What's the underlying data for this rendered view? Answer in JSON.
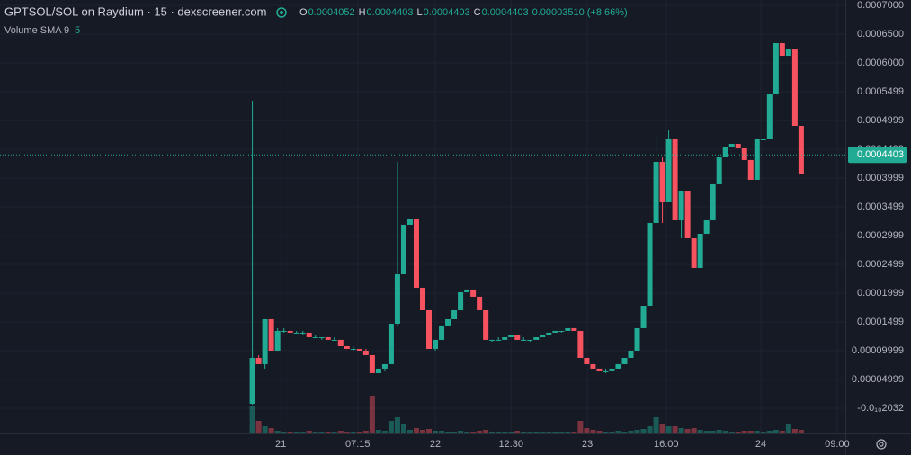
{
  "chart_data": {
    "type": "candlestick",
    "title": "GPTSOL/SOL on Raydium · 15 · dexscreener.com",
    "readout": [
      {
        "label": "O",
        "value": "0.0004052"
      },
      {
        "label": "H",
        "value": "0.0004403"
      },
      {
        "label": "L",
        "value": "0.0004403"
      },
      {
        "label": "C",
        "value": "0.0004403"
      }
    ],
    "change": "0.00003510 (+8.66%)",
    "volume_label": "Volume SMA 9",
    "volume_sma": 5,
    "up_color": "#22ab94",
    "down_color": "#f7525f",
    "xlim": [
      -40,
      94
    ],
    "xticks": [
      {
        "value": 4.5,
        "label": "21"
      },
      {
        "value": 16.7,
        "label": "07:15"
      },
      {
        "value": 29,
        "label": "22"
      },
      {
        "value": 41,
        "label": "12:30"
      },
      {
        "value": 53.1,
        "label": "23"
      },
      {
        "value": 65.6,
        "label": "16:00"
      },
      {
        "value": 80.6,
        "label": "24"
      },
      {
        "value": 92.7,
        "label": "09:00"
      }
    ],
    "ylim": [
      -4.38e-05,
      0.0007094
    ],
    "yticks": [
      {
        "value": 0.0007,
        "label": "0.0007000"
      },
      {
        "value": 0.00065,
        "label": "0.0006500"
      },
      {
        "value": 0.0006,
        "label": "0.0006000"
      },
      {
        "value": 0.0005499,
        "label": "0.0005499"
      },
      {
        "value": 0.0004999,
        "label": "0.0004999"
      },
      {
        "value": 0.0004499,
        "label": "0.0004499"
      },
      {
        "value": 0.0003999,
        "label": "0.0003999"
      },
      {
        "value": 0.0003499,
        "label": "0.0003499"
      },
      {
        "value": 0.0002999,
        "label": "0.0002999"
      },
      {
        "value": 0.0002499,
        "label": "0.0002499"
      },
      {
        "value": 0.0001999,
        "label": "0.0001999"
      },
      {
        "value": 0.0001499,
        "label": "0.0001499"
      },
      {
        "value": 9.999e-05,
        "label": "0.00009999"
      },
      {
        "value": 4.999e-05,
        "label": "0.00004999"
      },
      {
        "value": -2.032e-11,
        "label": "-0.0₁₀2032"
      }
    ],
    "last_price": {
      "value": 0.0004403,
      "label": "0.0004403"
    },
    "candles": [
      [
        7.8e-06,
        0.0005344,
        6.3e-06,
        8.75e-05
      ],
      [
        8.75e-05,
        9.22e-05,
        7.66e-05,
        7.66e-05
      ],
      [
        7.66e-05,
        0.0001547,
        6.88e-05,
        0.0001547
      ],
      [
        0.0001547,
        0.0001547,
        0.0001,
        0.0001
      ],
      [
        0.0001,
        0.0001391,
        0.0001,
        0.0001344
      ],
      [
        0.0001344,
        0.0001391,
        0.0001313,
        0.0001344
      ],
      [
        0.0001344,
        0.0001344,
        0.0001313,
        0.0001313
      ],
      [
        0.0001313,
        0.0001344,
        0.0001313,
        0.0001313
      ],
      [
        0.0001313,
        0.0001344,
        0.0001281,
        0.0001313
      ],
      [
        0.0001313,
        0.0001313,
        0.0001234,
        0.0001234
      ],
      [
        0.0001234,
        0.0001281,
        0.0001234,
        0.0001234
      ],
      [
        0.0001234,
        0.0001234,
        0.0001188,
        0.0001234
      ],
      [
        0.0001234,
        0.0001234,
        0.0001188,
        0.0001188
      ],
      [
        0.0001188,
        0.0001234,
        0.0001188,
        0.0001188
      ],
      [
        0.0001188,
        0.0001188,
        0.0001078,
        0.0001078
      ],
      [
        0.0001078,
        0.0001078,
        0.0001031,
        0.0001031
      ],
      [
        0.0001031,
        0.0001078,
        0.0001,
        0.0001031
      ],
      [
        0.0001031,
        0.0001031,
        0.0001,
        0.0001
      ],
      [
        0.0001,
        0.0001031,
        9.22e-05,
        9.22e-05
      ],
      [
        9.22e-05,
        9.22e-05,
        6.09e-05,
        6.09e-05
      ],
      [
        6.09e-05,
        6.88e-05,
        6.09e-05,
        6.88e-05
      ],
      [
        6.88e-05,
        7.66e-05,
        6.41e-05,
        7.66e-05
      ],
      [
        7.66e-05,
        0.0001469,
        7.66e-05,
        0.0001469
      ],
      [
        0.0001469,
        0.0004281,
        0.0001438,
        0.0002328
      ],
      [
        0.0002328,
        0.0003188,
        0.0002328,
        0.0003188
      ],
      [
        0.0003188,
        0.0003297,
        0.0003188,
        0.0003297
      ],
      [
        0.0003297,
        0.0003297,
        0.0002094,
        0.0002094
      ],
      [
        0.0002094,
        0.0002094,
        0.0001703,
        0.0001703
      ],
      [
        0.0001703,
        0.0001703,
        0.0001031,
        0.0001031
      ],
      [
        0.0001031,
        0.0001188,
        0.0001,
        0.0001188
      ],
      [
        0.0001188,
        0.0001438,
        0.0001188,
        0.0001438
      ],
      [
        0.0001438,
        0.0001547,
        0.0001438,
        0.0001547
      ],
      [
        0.0001547,
        0.0001703,
        0.0001547,
        0.0001703
      ],
      [
        0.0001703,
        0.0002016,
        0.0001703,
        0.0002016
      ],
      [
        0.0002016,
        0.0002063,
        0.0002016,
        0.0002063
      ],
      [
        0.0002063,
        0.0002063,
        0.0001938,
        0.0001938
      ],
      [
        0.0001938,
        0.0001938,
        0.0001703,
        0.0001703
      ],
      [
        0.0001703,
        0.0001703,
        0.0001188,
        0.0001188
      ],
      [
        0.0001188,
        0.0001188,
        0.0001156,
        0.0001188
      ],
      [
        0.0001188,
        0.0001234,
        0.0001188,
        0.0001188
      ],
      [
        0.0001188,
        0.0001234,
        0.0001188,
        0.0001234
      ],
      [
        0.0001234,
        0.0001281,
        0.0001234,
        0.0001281
      ],
      [
        0.0001281,
        0.0001281,
        0.0001188,
        0.0001188
      ],
      [
        0.0001188,
        0.0001234,
        0.0001188,
        0.0001188
      ],
      [
        0.0001188,
        0.0001188,
        0.0001156,
        0.0001188
      ],
      [
        0.0001188,
        0.0001234,
        0.0001188,
        0.0001234
      ],
      [
        0.0001234,
        0.0001281,
        0.0001234,
        0.0001281
      ],
      [
        0.0001281,
        0.0001313,
        0.0001281,
        0.0001313
      ],
      [
        0.0001313,
        0.0001344,
        0.0001313,
        0.0001344
      ],
      [
        0.0001344,
        0.0001344,
        0.0001313,
        0.0001344
      ],
      [
        0.0001344,
        0.0001391,
        0.0001344,
        0.0001391
      ],
      [
        0.0001391,
        0.0001391,
        0.0001344,
        0.0001344
      ],
      [
        0.0001344,
        0.0001344,
        8.75e-05,
        8.75e-05
      ],
      [
        8.75e-05,
        8.75e-05,
        7.66e-05,
        7.66e-05
      ],
      [
        7.66e-05,
        7.66e-05,
        6.88e-05,
        6.88e-05
      ],
      [
        6.88e-05,
        6.88e-05,
        6.41e-05,
        6.41e-05
      ],
      [
        6.41e-05,
        6.88e-05,
        6.09e-05,
        6.41e-05
      ],
      [
        6.41e-05,
        6.88e-05,
        6.41e-05,
        6.88e-05
      ],
      [
        6.88e-05,
        7.66e-05,
        6.88e-05,
        7.66e-05
      ],
      [
        7.66e-05,
        8.75e-05,
        7.66e-05,
        8.75e-05
      ],
      [
        8.75e-05,
        0.0001,
        8.75e-05,
        0.0001
      ],
      [
        0.0001,
        0.0001391,
        0.0001,
        0.0001391
      ],
      [
        0.0001391,
        0.0001781,
        0.0001391,
        0.0001781
      ],
      [
        0.0001781,
        0.0003219,
        0.0001781,
        0.0003219
      ],
      [
        0.0003219,
        0.000475,
        0.0003219,
        0.0004281
      ],
      [
        0.0004281,
        0.0004359,
        0.0003219,
        0.0003578
      ],
      [
        0.0003578,
        0.0004828,
        0.0003578,
        0.0004672
      ],
      [
        0.0004672,
        0.0004672,
        0.0003266,
        0.0003266
      ],
      [
        0.0003266,
        0.0003781,
        0.0002953,
        0.0003781
      ],
      [
        0.0003781,
        0.0003781,
        0.0002953,
        0.0002953
      ],
      [
        0.0002953,
        0.0002953,
        0.0002438,
        0.0002438
      ],
      [
        0.0002438,
        0.0003031,
        0.0002438,
        0.0003031
      ],
      [
        0.0003031,
        0.0003266,
        0.0003031,
        0.0003266
      ],
      [
        0.0003266,
        0.0003891,
        0.0003266,
        0.0003891
      ],
      [
        0.0003891,
        0.0004359,
        0.0003891,
        0.0004359
      ],
      [
        0.0004359,
        0.0004547,
        0.0004359,
        0.0004547
      ],
      [
        0.0004547,
        0.0004594,
        0.0004547,
        0.0004594
      ],
      [
        0.0004594,
        0.0004594,
        0.0004516,
        0.0004516
      ],
      [
        0.0004516,
        0.0004516,
        0.0004313,
        0.0004313
      ],
      [
        0.0004313,
        0.0004313,
        0.0003969,
        0.0003969
      ],
      [
        0.0003969,
        0.0004672,
        0.0003969,
        0.0004672
      ],
      [
        0.0004672,
        0.0004672,
        0.0004672,
        0.0004672
      ],
      [
        0.0004672,
        0.0005453,
        0.0004672,
        0.0005453
      ],
      [
        0.0005453,
        0.0006344,
        0.0005453,
        0.0006344
      ],
      [
        0.0006344,
        0.0006344,
        0.0006125,
        0.0006125
      ],
      [
        0.0006125,
        0.0006234,
        0.0006125,
        0.0006234
      ],
      [
        0.0006234,
        0.0006234,
        0.0004906,
        0.0004906
      ],
      [
        0.0004906,
        0.0004906,
        0.0004078,
        0.0004078
      ]
    ],
    "volume": [
      30,
      14,
      8,
      6,
      3,
      2,
      2,
      2,
      2,
      3,
      2,
      2,
      2,
      2,
      3,
      2,
      2,
      2,
      3,
      42,
      4,
      3,
      14,
      18,
      10,
      4,
      6,
      4,
      5,
      3,
      3,
      2,
      2,
      3,
      2,
      2,
      3,
      4,
      2,
      2,
      2,
      2,
      3,
      2,
      2,
      2,
      2,
      2,
      2,
      2,
      2,
      2,
      14,
      6,
      4,
      3,
      2,
      2,
      3,
      2,
      3,
      4,
      5,
      8,
      18,
      10,
      8,
      8,
      6,
      5,
      6,
      4,
      3,
      3,
      4,
      3,
      2,
      2,
      3,
      3,
      3,
      2,
      3,
      4,
      3,
      10,
      5,
      4
    ]
  }
}
